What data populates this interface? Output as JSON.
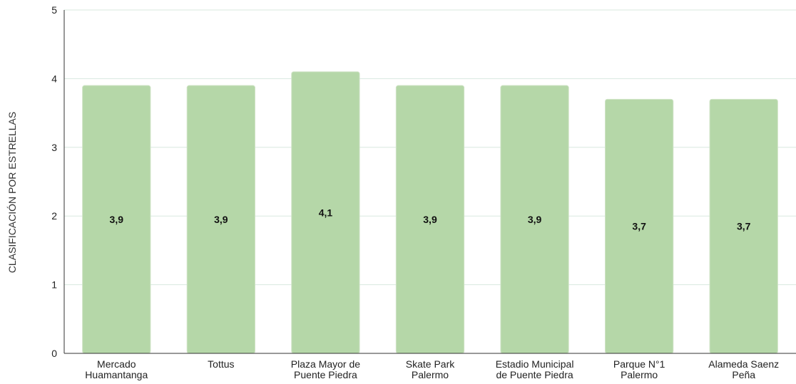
{
  "chart_data": {
    "type": "bar",
    "ylabel": "CLASIFICACIÓN POR ESTRELLAS",
    "xlabel": "",
    "ylim": [
      0,
      5
    ],
    "yticks": [
      0,
      1,
      2,
      3,
      4,
      5
    ],
    "grid": true,
    "legend": "none",
    "bar_color": "#b5d7a8",
    "grid_color": "#d8e8df",
    "categories": [
      [
        "Mercado",
        "Huamantanga"
      ],
      [
        "Tottus"
      ],
      [
        "Plaza Mayor de",
        "Puente Piedra"
      ],
      [
        "Skate Park",
        "Palermo"
      ],
      [
        "Estadio Municipal",
        "de Puente Piedra"
      ],
      [
        "Parque N°1",
        "Palermo"
      ],
      [
        "Alameda Saenz",
        "Peña"
      ]
    ],
    "values": [
      3.9,
      3.9,
      4.1,
      3.9,
      3.9,
      3.7,
      3.7
    ],
    "data_labels": [
      "3,9",
      "3,9",
      "4,1",
      "3,9",
      "3,9",
      "3,7",
      "3,7"
    ]
  }
}
